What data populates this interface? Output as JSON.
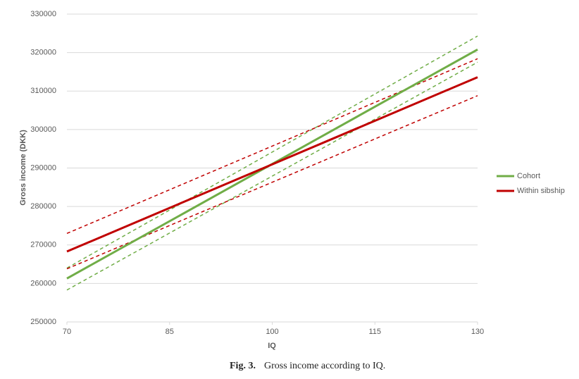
{
  "chart_data": {
    "type": "line",
    "xlabel": "IQ",
    "ylabel": "Gross income (DKK)",
    "caption_label": "Fig. 3.",
    "caption": "Gross income according to IQ.",
    "x": [
      70,
      130
    ],
    "xlim": [
      70,
      130
    ],
    "xticks": [
      70,
      85,
      100,
      115,
      130
    ],
    "ylim": [
      250000,
      330000
    ],
    "yticks": [
      250000,
      260000,
      270000,
      280000,
      290000,
      300000,
      310000,
      320000,
      330000
    ],
    "grid": true,
    "legend": "right",
    "series": [
      {
        "name": "Cohort",
        "color": "#70ad47",
        "values": [
          261300,
          320800
        ]
      },
      {
        "name": "Within sibship",
        "color": "#c00000",
        "values": [
          268300,
          313600
        ]
      },
      {
        "color": "#70ad47",
        "dashed": true,
        "values": [
          264000,
          324300
        ]
      },
      {
        "color": "#70ad47",
        "dashed": true,
        "values": [
          258300,
          317500
        ]
      },
      {
        "color": "#c00000",
        "dashed": true,
        "values": [
          273000,
          318400
        ]
      },
      {
        "color": "#c00000",
        "dashed": true,
        "values": [
          263800,
          308800
        ]
      }
    ]
  }
}
